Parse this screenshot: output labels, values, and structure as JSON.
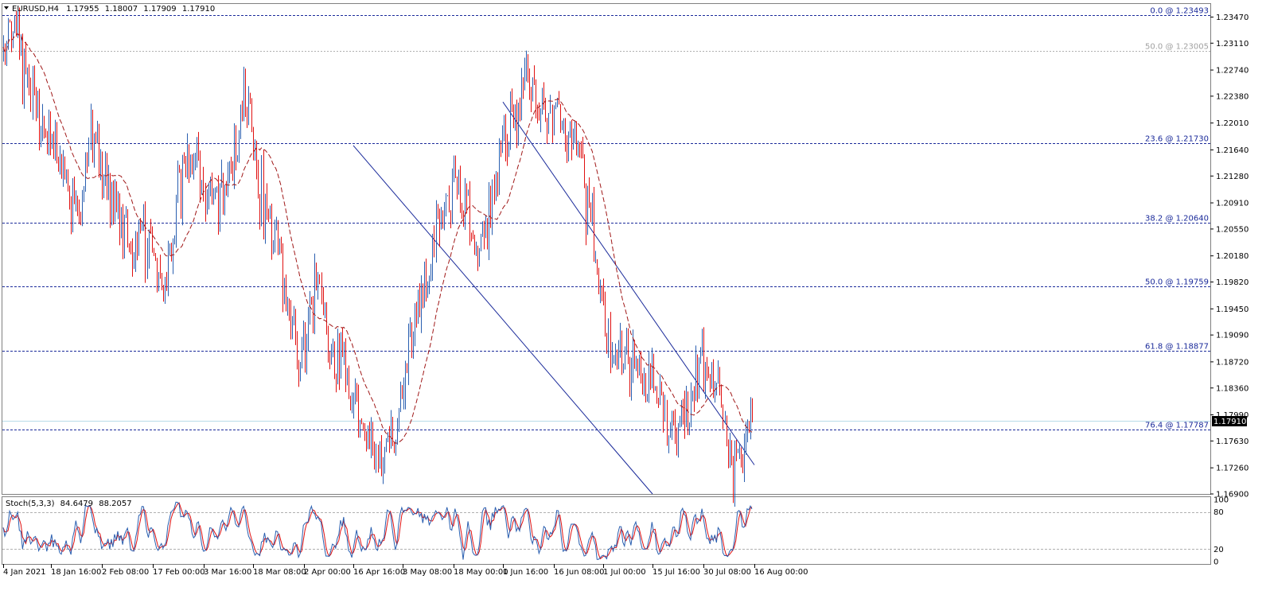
{
  "header": {
    "symbol": "EURUSD,H4",
    "open": "1.17955",
    "high": "1.18007",
    "low": "1.17909",
    "close": "1.17910"
  },
  "colors": {
    "bull": "#2a5fb0",
    "bear": "#e01010",
    "ma": "#a01818",
    "fib": "#1a2a9a",
    "channel": "#1a2a9a",
    "stoch_main": "#2a5fb0",
    "stoch_signal": "#e01010",
    "price_tag_bg": "#000000"
  },
  "current_price_label": "1.17910",
  "indicator_header": {
    "name": "Stoch(5,3,3)",
    "main_value": "84.6479",
    "signal_value": "88.2057"
  },
  "chart_data": {
    "type": "candlestick",
    "symbol": "EURUSD",
    "timeframe": "H4",
    "ylim": [
      1.169,
      1.2365
    ],
    "y_ticks": [
      "1.23470",
      "1.23110",
      "1.22740",
      "1.22380",
      "1.22010",
      "1.21640",
      "1.21280",
      "1.20910",
      "1.20550",
      "1.20180",
      "1.19820",
      "1.19450",
      "1.19090",
      "1.18720",
      "1.18360",
      "1.17990",
      "1.17630",
      "1.17260",
      "1.16900"
    ],
    "x_ticks": [
      "4 Jan 2021",
      "18 Jan 16:00",
      "2 Feb 08:00",
      "17 Feb 00:00",
      "3 Mar 16:00",
      "18 Mar 08:00",
      "2 Apr 00:00",
      "16 Apr 16:00",
      "3 May 08:00",
      "18 May 00:00",
      "1 Jun 16:00",
      "16 Jun 08:00",
      "1 Jul 00:00",
      "15 Jul 16:00",
      "30 Jul 08:00",
      "16 Aug 00:00"
    ],
    "price_path": [
      1.2296,
      1.2349,
      1.2285,
      1.225,
      1.217,
      1.218,
      1.213,
      1.208,
      1.21,
      1.219,
      1.214,
      1.21,
      1.207,
      1.202,
      1.206,
      1.205,
      1.196,
      1.203,
      1.212,
      1.216,
      1.213,
      1.209,
      1.21,
      1.214,
      1.22,
      1.224,
      1.211,
      1.206,
      1.203,
      1.194,
      1.186,
      1.193,
      1.198,
      1.19,
      1.189,
      1.185,
      1.178,
      1.177,
      1.172,
      1.174,
      1.18,
      1.188,
      1.194,
      1.199,
      1.205,
      1.209,
      1.214,
      1.207,
      1.201,
      1.206,
      1.214,
      1.218,
      1.222,
      1.226,
      1.223,
      1.22,
      1.221,
      1.218,
      1.219,
      1.213,
      1.205,
      1.193,
      1.188,
      1.189,
      1.186,
      1.183,
      1.185,
      1.18,
      1.177,
      1.179,
      1.183,
      1.189,
      1.186,
      1.18,
      1.173,
      1.175,
      1.18
    ],
    "stochastic": {
      "name": "Stoch(5,3,3)",
      "main": 84.6479,
      "signal": 88.2057,
      "levels": [
        20,
        80
      ],
      "y_ticks": [
        "100",
        "80",
        "20",
        "0"
      ]
    },
    "fibonacci_levels": [
      {
        "level": "0.0",
        "price": "1.23493",
        "label": "0.0 @ 1.23493"
      },
      {
        "level": "50.0",
        "price": "1.23005",
        "label": "50.0 @ 1.23005"
      },
      {
        "level": "23.6",
        "price": "1.21730",
        "label": "23.6 @ 1.21730"
      },
      {
        "level": "38.2",
        "price": "1.20640",
        "label": "38.2 @ 1.20640"
      },
      {
        "level": "50.0",
        "price": "1.19759",
        "label": "50.0 @ 1.19759"
      },
      {
        "level": "61.8",
        "price": "1.18877",
        "label": "61.8 @ 1.18877"
      },
      {
        "level": "76.4",
        "price": "1.17787",
        "label": "76.4 @ 1.17787"
      }
    ],
    "channel": {
      "upper": {
        "from": {
          "x": "1 Jun 16:00",
          "price": 1.223
        },
        "to": {
          "x": "16 Aug 00:00",
          "price": 1.173
        }
      },
      "lower": {
        "from": {
          "x": "16 Apr 16:00",
          "price": 1.217
        },
        "to": {
          "x": "15 Jul 16:00",
          "price": 1.169
        }
      }
    }
  }
}
